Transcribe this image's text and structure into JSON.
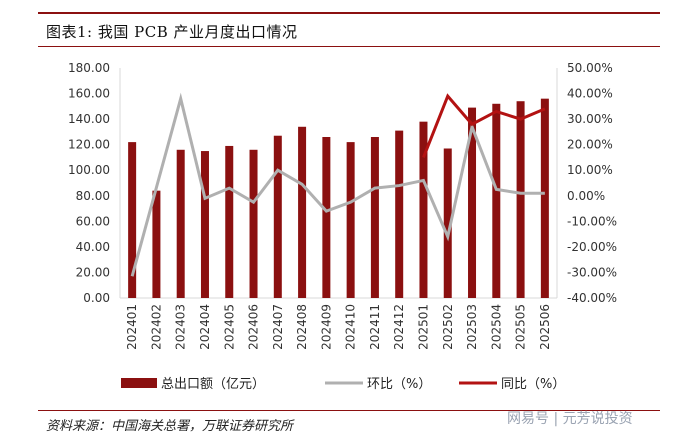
{
  "header": {
    "title": "图表1:  我国 PCB 产业月度出口情况"
  },
  "footer": {
    "source": "资料来源：中国海关总署，万联证券研究所",
    "watermark": "网易号 | 元芳说投资"
  },
  "colors": {
    "bar": "#8b1010",
    "mom": "#b0b0b0",
    "yoy": "#b31212",
    "axis": "#d9d9d9"
  },
  "chart_data": {
    "type": "bar",
    "categories": [
      "202401",
      "202402",
      "202403",
      "202404",
      "202405",
      "202406",
      "202407",
      "202408",
      "202409",
      "202410",
      "202411",
      "202412",
      "202501",
      "202502",
      "202503",
      "202504",
      "202505",
      "202506"
    ],
    "y_left": {
      "ylim": [
        0,
        180
      ],
      "ticks": [
        "0.00",
        "20.00",
        "40.00",
        "60.00",
        "80.00",
        "100.00",
        "120.00",
        "140.00",
        "160.00",
        "180.00"
      ]
    },
    "y_right": {
      "ylim": [
        -40,
        50
      ],
      "ticks": [
        "-40.00%",
        "-30.00%",
        "-20.00%",
        "-10.00%",
        "0.00%",
        "10.00%",
        "20.00%",
        "30.00%",
        "40.00%",
        "50.00%"
      ]
    },
    "series": [
      {
        "name": "总出口额（亿元）",
        "type": "bar",
        "axis": "left",
        "values": [
          122,
          84,
          116,
          115,
          119,
          116,
          127,
          134,
          126,
          122,
          126,
          131,
          138,
          117,
          149,
          152,
          154,
          156
        ]
      },
      {
        "name": "环比（%）",
        "type": "line",
        "axis": "right",
        "values": [
          -31.5,
          null,
          38,
          -1,
          3,
          -2.5,
          10,
          4.5,
          -6,
          -2.5,
          3,
          4,
          6,
          -16,
          27,
          2.5,
          1,
          1
        ]
      },
      {
        "name": "同比（%）",
        "type": "line",
        "axis": "right",
        "values": [
          null,
          null,
          null,
          null,
          null,
          null,
          null,
          null,
          null,
          null,
          null,
          null,
          15,
          39,
          28,
          33,
          30,
          34
        ]
      }
    ],
    "legend": {
      "position": "bottom"
    }
  }
}
